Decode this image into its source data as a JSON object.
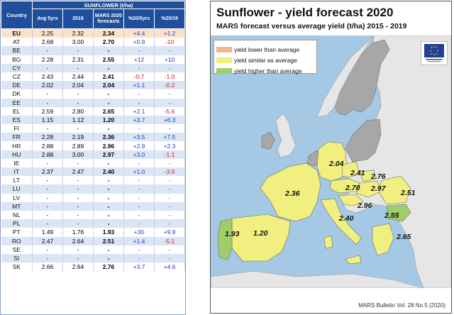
{
  "table": {
    "header": {
      "country": "Country",
      "group": "SUNFLOWER (t/ha)",
      "cols": [
        "Avg 5yrs",
        "2019",
        "MARS 2020 forecasts",
        "%20/5yrs",
        "%20/19"
      ]
    },
    "rows": [
      {
        "c": "EU",
        "a": "2.25",
        "b": "2.32",
        "f": "2.34",
        "p1": "+4.4",
        "p2": "+1.2"
      },
      {
        "c": "AT",
        "a": "2.68",
        "b": "3.00",
        "f": "2.70",
        "p1": "+0.9",
        "p2": "-10"
      },
      {
        "c": "BE",
        "a": "-",
        "b": "-",
        "f": "-",
        "p1": "-",
        "p2": "-"
      },
      {
        "c": "BG",
        "a": "2.28",
        "b": "2.31",
        "f": "2.55",
        "p1": "+12",
        "p2": "+10"
      },
      {
        "c": "CY",
        "a": "-",
        "b": "-",
        "f": "-",
        "p1": "-",
        "p2": "-"
      },
      {
        "c": "CZ",
        "a": "2.43",
        "b": "2.44",
        "f": "2.41",
        "p1": "-0.7",
        "p2": "-1.0"
      },
      {
        "c": "DE",
        "a": "2.02",
        "b": "2.04",
        "f": "2.04",
        "p1": "+1.1",
        "p2": "-0.2"
      },
      {
        "c": "DK",
        "a": "-",
        "b": "-",
        "f": "-",
        "p1": "-",
        "p2": "-"
      },
      {
        "c": "EE",
        "a": "-",
        "b": "-",
        "f": "-",
        "p1": "-",
        "p2": "-"
      },
      {
        "c": "EL",
        "a": "2.59",
        "b": "2.80",
        "f": "2.65",
        "p1": "+2.1",
        "p2": "-5.6"
      },
      {
        "c": "ES",
        "a": "1.15",
        "b": "1.12",
        "f": "1.20",
        "p1": "+3.7",
        "p2": "+6.3"
      },
      {
        "c": "FI",
        "a": "-",
        "b": "-",
        "f": "-",
        "p1": "-",
        "p2": "-"
      },
      {
        "c": "FR",
        "a": "2.28",
        "b": "2.19",
        "f": "2.36",
        "p1": "+3.5",
        "p2": "+7.5"
      },
      {
        "c": "HR",
        "a": "2.88",
        "b": "2.89",
        "f": "2.96",
        "p1": "+2.9",
        "p2": "+2.3"
      },
      {
        "c": "HU",
        "a": "2.88",
        "b": "3.00",
        "f": "2.97",
        "p1": "+3.0",
        "p2": "-1.1"
      },
      {
        "c": "IE",
        "a": "-",
        "b": "-",
        "f": "-",
        "p1": "-",
        "p2": "-"
      },
      {
        "c": "IT",
        "a": "2.37",
        "b": "2.47",
        "f": "2.40",
        "p1": "+1.0",
        "p2": "-3.0"
      },
      {
        "c": "LT",
        "a": "-",
        "b": "-",
        "f": "-",
        "p1": "-",
        "p2": "-"
      },
      {
        "c": "LU",
        "a": "-",
        "b": "-",
        "f": "-",
        "p1": "-",
        "p2": "-"
      },
      {
        "c": "LV",
        "a": "-",
        "b": "-",
        "f": "-",
        "p1": "-",
        "p2": "-"
      },
      {
        "c": "MT",
        "a": "-",
        "b": "-",
        "f": "-",
        "p1": "-",
        "p2": "-"
      },
      {
        "c": "NL",
        "a": "-",
        "b": "-",
        "f": "-",
        "p1": "-",
        "p2": "-"
      },
      {
        "c": "PL",
        "a": "-",
        "b": "-",
        "f": "-",
        "p1": "-",
        "p2": "-"
      },
      {
        "c": "PT",
        "a": "1.49",
        "b": "1.76",
        "f": "1.93",
        "p1": "+30",
        "p2": "+9.9"
      },
      {
        "c": "RO",
        "a": "2.47",
        "b": "2.64",
        "f": "2.51",
        "p1": "+1.4",
        "p2": "-5.1"
      },
      {
        "c": "SE",
        "a": "-",
        "b": "-",
        "f": "-",
        "p1": "-",
        "p2": "-"
      },
      {
        "c": "SI",
        "a": "-",
        "b": "-",
        "f": "-",
        "p1": "-",
        "p2": "-"
      },
      {
        "c": "SK",
        "a": "2.66",
        "b": "2.64",
        "f": "2.76",
        "p1": "+3.7",
        "p2": "+4.6"
      }
    ]
  },
  "map": {
    "title": "Sunflower - yield forecast 2020",
    "subtitle": "MARS forecast versus average yield (t/ha) 2015 - 2019",
    "legend": [
      {
        "label": "yield lower than average",
        "color": "#f7b58e"
      },
      {
        "label": "yield similar as average",
        "color": "#f0ef7f"
      },
      {
        "label": "yield higher than average",
        "color": "#9fcd6a"
      }
    ],
    "values": {
      "DE": "2.04",
      "CZ": "2.41",
      "SK": "2.76",
      "AT": "2.70",
      "HU": "2.97",
      "RO": "2.51",
      "FR": "2.36",
      "HR": "2.96",
      "BG": "2.55",
      "IT": "2.40",
      "EL": "2.65",
      "PT": "1.93",
      "ES": "1.20"
    },
    "credit": "MARS Bulletin Vol. 28 No.5 (2020)",
    "colors": {
      "sea": "#a5c8e4",
      "land_eu_nodata": "#a7a7a7",
      "land_noneu": "#e6e6e6",
      "similar": "#f0ef7f",
      "higher": "#9fcd6a",
      "lower": "#f7b58e"
    }
  }
}
